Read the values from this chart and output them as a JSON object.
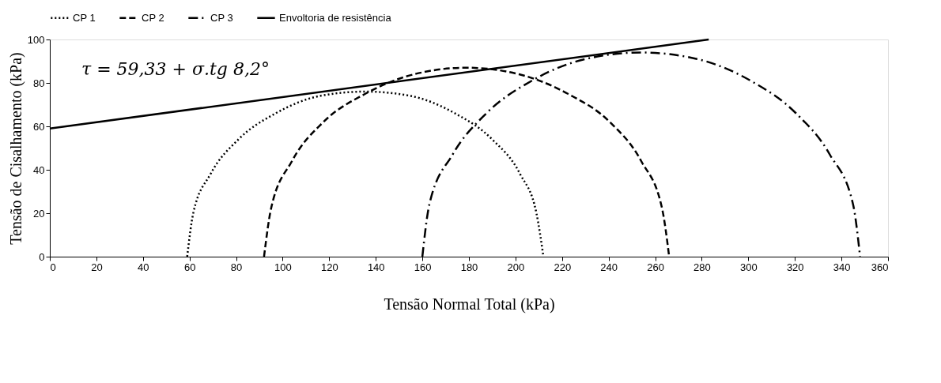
{
  "chart_data": {
    "type": "line",
    "xlabel": "Tensão Normal Total (kPa)",
    "ylabel": "Tensão de Cisalhamento (kPa)",
    "xlim": [
      0,
      360
    ],
    "xticks": [
      0,
      20,
      40,
      60,
      80,
      100,
      120,
      140,
      160,
      180,
      200,
      220,
      240,
      260,
      280,
      300,
      320,
      340,
      360
    ],
    "ylim": [
      0,
      100
    ],
    "yticks": [
      0,
      20,
      40,
      60,
      80,
      100
    ],
    "grid": false,
    "legend": "top",
    "marker": "none",
    "annotations": [
      "τ = 59,33 +  σ.tg 8,2°"
    ],
    "series": [
      {
        "name": "CP 1",
        "color": "#000000",
        "line_style": "dotted",
        "x": [
          59,
          61.6,
          69,
          81,
          97,
          116,
          135.5,
          155,
          174,
          190,
          202,
          209,
          212
        ],
        "values": [
          0,
          20,
          38,
          54,
          66,
          74,
          76,
          74,
          66,
          54,
          38,
          20,
          0
        ]
      },
      {
        "name": "CP 2",
        "color": "#000000",
        "line_style": "dashed",
        "x": [
          92,
          95,
          104,
          117.5,
          135.5,
          156.5,
          179,
          201.5,
          222.5,
          240.5,
          254,
          263,
          266
        ],
        "values": [
          0,
          22,
          44,
          62,
          75,
          84,
          87,
          84,
          75,
          62,
          44,
          22,
          0
        ]
      },
      {
        "name": "CP 3",
        "color": "#000000",
        "line_style": "dashdot",
        "x": [
          160,
          163,
          173,
          187.5,
          207,
          230,
          254,
          278,
          301,
          320.5,
          335,
          345,
          348
        ],
        "values": [
          0,
          24,
          47,
          66,
          81,
          91,
          94,
          91,
          81,
          66,
          47,
          24,
          0
        ]
      },
      {
        "name": "Envoltoria de resistência",
        "color": "#000000",
        "line_style": "solid",
        "x": [
          0,
          283
        ],
        "values": [
          59,
          100
        ]
      }
    ]
  }
}
